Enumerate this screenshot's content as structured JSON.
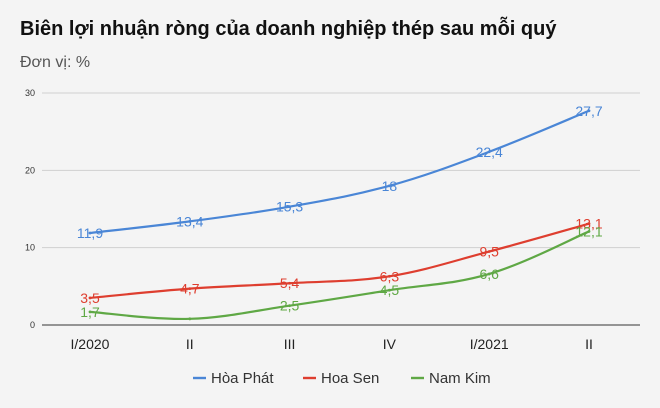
{
  "title": "Biên lợi nhuận ròng của doanh nghiệp thép sau mỗi quý",
  "subtitle": "Đơn vị: %",
  "chart_data": {
    "type": "line",
    "title": "Biên lợi nhuận ròng của doanh nghiệp thép sau mỗi quý",
    "subtitle": "Đơn vị: %",
    "xlabel": "",
    "ylabel": "",
    "categories": [
      "I/2020",
      "II",
      "III",
      "IV",
      "I/2021",
      "II"
    ],
    "ylim": [
      0,
      30
    ],
    "yticks": [
      "0",
      "10",
      "20",
      "30"
    ],
    "grid": true,
    "legend": "bottom",
    "series": [
      {
        "name": "Hòa Phát",
        "color": "#4a86d6",
        "values": [
          11.9,
          13.4,
          15.3,
          18,
          22.4,
          27.7
        ],
        "labels": [
          "11,9",
          "13,4",
          "15,3",
          "18",
          "22,4",
          "27,7"
        ]
      },
      {
        "name": "Hoa Sen",
        "color": "#de3e2f",
        "values": [
          3.5,
          4.7,
          5.4,
          6.3,
          9.5,
          13.1
        ],
        "labels": [
          "3,5",
          "4,7",
          "5,4",
          "6,3",
          "9,5",
          "13,1"
        ]
      },
      {
        "name": "Nam Kim",
        "color": "#5fa845",
        "values": [
          1.7,
          0.8,
          2.5,
          4.5,
          6.6,
          12.1
        ],
        "labels": [
          "1,7",
          "",
          "2,5",
          "4,5",
          "6,6",
          "12,1"
        ]
      }
    ]
  }
}
